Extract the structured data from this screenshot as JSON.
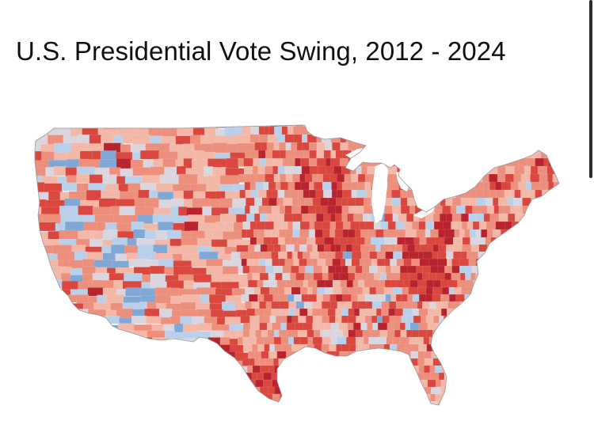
{
  "title": "U.S. Presidential Vote Swing, 2012 - 2024",
  "map": {
    "subject": "county-level presidential vote swing",
    "colors": {
      "swing_rep_strong": "#b8232d",
      "swing_rep": "#d9473f",
      "swing_rep_light": "#ec8f7c",
      "swing_rep_faint": "#f4b8a8",
      "neutral": "#d9d6df",
      "swing_dem_light": "#b8d0ea",
      "swing_dem": "#7fa8d6",
      "swing_dem_strong": "#4f7fbf",
      "background": "#ffffff"
    }
  }
}
